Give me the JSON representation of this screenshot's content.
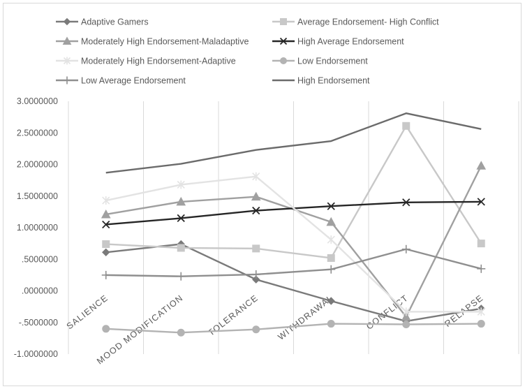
{
  "chart_data": {
    "type": "line",
    "title": "",
    "xlabel": "",
    "ylabel": "",
    "categories": [
      "SALIENCE",
      "MOOD MODIFICATION",
      "TOLERANCE",
      "WITHDRAWAL",
      "CONFLICT",
      "RELAPSE"
    ],
    "ylim": [
      -1.0,
      3.0
    ],
    "ytick_labels": [
      "3.0000000",
      "2.5000000",
      "2.0000000",
      "1.5000000",
      "1.0000000",
      ".5000000",
      ".0000000",
      "-.5000000",
      "-1.0000000"
    ],
    "ytick_values": [
      3.0,
      2.5,
      2.0,
      1.5,
      1.0,
      0.5,
      0.0,
      -0.5,
      -1.0
    ],
    "grid": "vertical",
    "legend_position": "top",
    "series": [
      {
        "name": "Adaptive Gamers",
        "values": [
          0.61,
          0.74,
          0.18,
          -0.16,
          -0.48,
          -0.28
        ],
        "color": "#7a7a7a",
        "marker": "diamond"
      },
      {
        "name": "Average Endorsement- High Conflict",
        "values": [
          0.74,
          0.68,
          0.67,
          0.52,
          2.61,
          0.75
        ],
        "color": "#c8c8c8",
        "marker": "square"
      },
      {
        "name": "Moderately High Endorsement-Maladaptive",
        "values": [
          1.21,
          1.41,
          1.49,
          1.09,
          -0.41,
          1.98
        ],
        "color": "#a0a0a0",
        "marker": "triangle"
      },
      {
        "name": "High Average Endorsement",
        "values": [
          1.05,
          1.15,
          1.27,
          1.34,
          1.4,
          1.41
        ],
        "color": "#262626",
        "marker": "x"
      },
      {
        "name": "Moderately High Endorsement-Adaptive",
        "values": [
          1.43,
          1.68,
          1.81,
          0.81,
          -0.33,
          -0.33
        ],
        "color": "#e3e3e3",
        "marker": "star"
      },
      {
        "name": "Low Endorsement",
        "values": [
          -0.6,
          -0.66,
          -0.61,
          -0.52,
          -0.53,
          -0.52
        ],
        "color": "#b3b3b3",
        "marker": "circle"
      },
      {
        "name": "Low Average Endorsement",
        "values": [
          0.25,
          0.23,
          0.26,
          0.34,
          0.66,
          0.35
        ],
        "color": "#8f8f8f",
        "marker": "plus"
      },
      {
        "name": "High Endorsement",
        "values": [
          1.87,
          2.01,
          2.23,
          2.37,
          2.81,
          2.56
        ],
        "color": "#6b6b6b",
        "marker": "none"
      }
    ]
  }
}
